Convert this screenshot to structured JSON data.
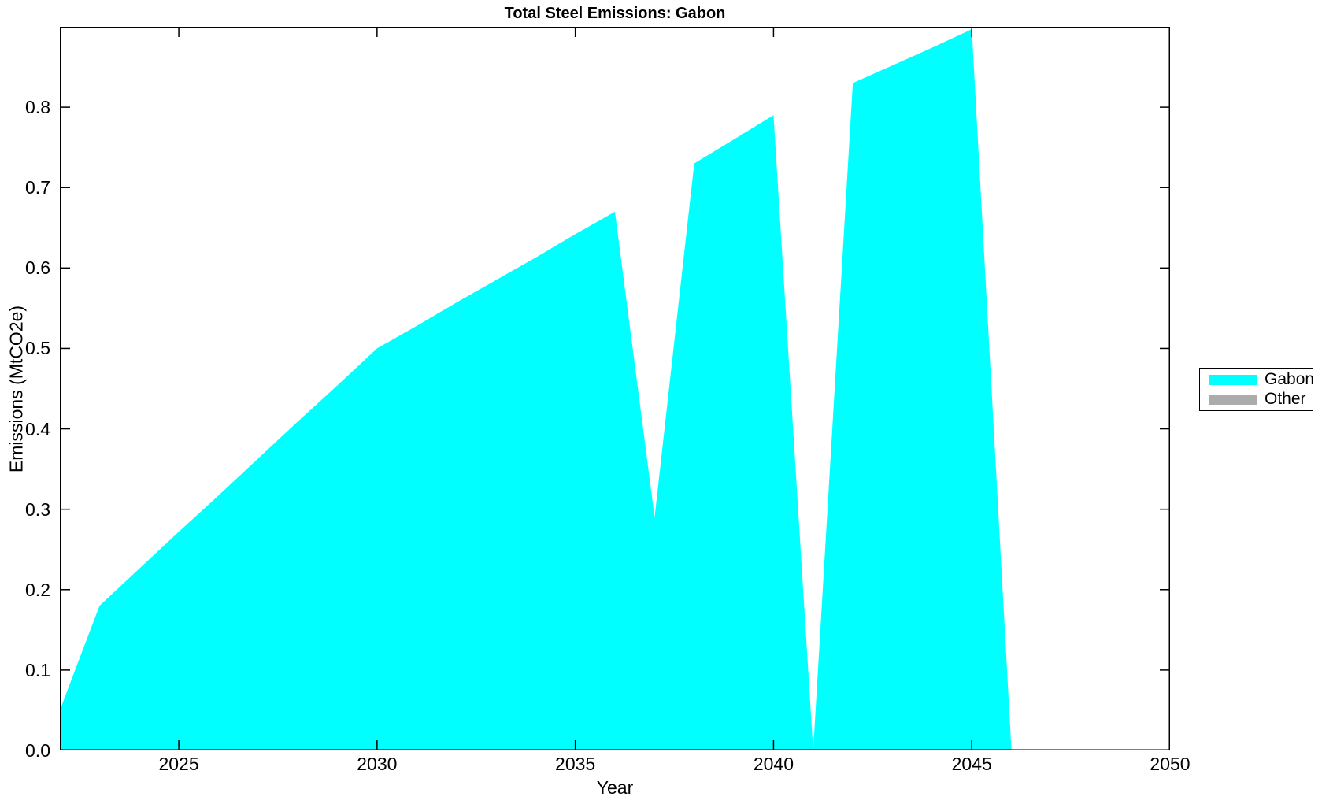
{
  "chart_data": {
    "type": "area",
    "title": "Total Steel Emissions: Gabon",
    "xlabel": "Year",
    "ylabel": "Emissions (MtCO2e)",
    "xlim": [
      2022,
      2050
    ],
    "ylim": [
      0,
      0.9
    ],
    "x_ticks": [
      2025,
      2030,
      2035,
      2040,
      2045,
      2050
    ],
    "y_ticks": [
      "0.0",
      "0.1",
      "0.2",
      "0.3",
      "0.4",
      "0.5",
      "0.6",
      "0.7",
      "0.8"
    ],
    "grid": false,
    "box": true,
    "tick_direction": "in",
    "legend_position": "right-outside-middle",
    "x": [
      2022,
      2023,
      2024,
      2025,
      2026,
      2027,
      2028,
      2029,
      2030,
      2031,
      2032,
      2033,
      2034,
      2035,
      2036,
      2037,
      2038,
      2039,
      2040,
      2041,
      2042,
      2043,
      2044,
      2045,
      2046,
      2047,
      2048,
      2049,
      2050
    ],
    "series": [
      {
        "name": "Gabon",
        "color": "#00FFFF",
        "values": [
          0.05,
          0.18,
          0.226,
          0.272,
          0.317,
          0.363,
          0.409,
          0.454,
          0.5,
          0.528,
          0.557,
          0.585,
          0.613,
          0.642,
          0.67,
          0.29,
          0.73,
          0.76,
          0.79,
          0.0,
          0.83,
          0.852,
          0.874,
          0.897,
          0.0,
          0.0,
          0.0,
          0.0,
          0.0
        ]
      },
      {
        "name": "Other",
        "color": "#ACACAC",
        "values": [
          0,
          0,
          0,
          0,
          0,
          0,
          0,
          0,
          0,
          0,
          0,
          0,
          0,
          0,
          0,
          0,
          0,
          0,
          0,
          0,
          0,
          0,
          0,
          0,
          0,
          0,
          0,
          0,
          0
        ]
      }
    ]
  },
  "colors": {
    "axis": "#000000",
    "background": "#ffffff"
  }
}
